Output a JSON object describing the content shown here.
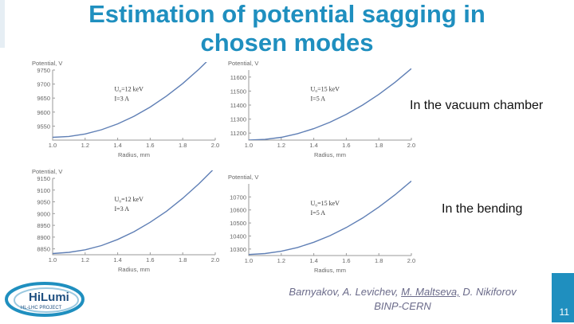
{
  "slide": {
    "title_line1": "Estimation of potential sagging in",
    "title_line2": "chosen modes",
    "annotation_top": "In the vacuum chamber",
    "annotation_bottom": "In the bending",
    "authors_part1": "Barnyakov, A. Levichev, ",
    "authors_underlined": "M. Maltseva,",
    "authors_part2": " D. Nikiforov",
    "affiliation": "BINP-CERN",
    "page_number": "11",
    "logo_text_main": "HiLumi",
    "logo_text_sub": "HL-LHC PROJECT"
  },
  "colors": {
    "title": "#1f8fbf",
    "curve": "#5f7fb5",
    "accent": "#1f8fbf"
  },
  "chart_data": [
    {
      "type": "line",
      "title": "",
      "xlabel": "Radius, mm",
      "ylabel": "Potential, V",
      "xlim": [
        1.0,
        2.0
      ],
      "ylim": [
        9500,
        9750
      ],
      "xticks": [
        1.0,
        1.2,
        1.4,
        1.6,
        1.8,
        2.0
      ],
      "xtick_labels": [
        "1.0",
        "1.2",
        "1.4",
        "1.6",
        "1.8",
        "2.0"
      ],
      "yticks": [
        9550,
        9600,
        9650,
        9700,
        9750
      ],
      "ytick_labels": [
        "9550",
        "9600",
        "9650",
        "9700",
        "9750"
      ],
      "legend_text": [
        "U₀=12 keV",
        "I=3 A"
      ],
      "series": [
        {
          "x": [
            1.0,
            1.1,
            1.2,
            1.3,
            1.4,
            1.5,
            1.6,
            1.7,
            1.8,
            1.9,
            2.0
          ],
          "values": [
            9510,
            9513,
            9522,
            9537,
            9558,
            9585,
            9618,
            9657,
            9702,
            9753,
            9810
          ]
        }
      ]
    },
    {
      "type": "line",
      "title": "",
      "xlabel": "Radius, mm",
      "ylabel": "Potential, V",
      "xlim": [
        1.0,
        2.0
      ],
      "ylim": [
        11150,
        11650
      ],
      "xticks": [
        1.0,
        1.2,
        1.4,
        1.6,
        1.8,
        2.0
      ],
      "xtick_labels": [
        "1.0",
        "1.2",
        "1.4",
        "1.6",
        "1.8",
        "2.0"
      ],
      "yticks": [
        11200,
        11300,
        11400,
        11500,
        11600
      ],
      "ytick_labels": [
        "11200",
        "11300",
        "11400",
        "11500",
        "11600"
      ],
      "legend_text": [
        "U₀=15 keV",
        "I=5 A"
      ],
      "series": [
        {
          "x": [
            1.0,
            1.1,
            1.2,
            1.3,
            1.4,
            1.5,
            1.6,
            1.7,
            1.8,
            1.9,
            2.0
          ],
          "values": [
            11150,
            11155,
            11170,
            11196,
            11232,
            11278,
            11334,
            11400,
            11476,
            11563,
            11660
          ]
        }
      ]
    },
    {
      "type": "line",
      "title": "",
      "xlabel": "Radius, mm",
      "ylabel": "Potential, V",
      "xlim": [
        1.0,
        2.0
      ],
      "ylim": [
        8825,
        9150
      ],
      "xticks": [
        1.0,
        1.2,
        1.4,
        1.6,
        1.8,
        2.0
      ],
      "xtick_labels": [
        "1.0",
        "1.2",
        "1.4",
        "1.6",
        "1.8",
        "2.0"
      ],
      "yticks": [
        8850,
        8900,
        8950,
        9000,
        9050,
        9100,
        9150
      ],
      "ytick_labels": [
        "8850",
        "8900",
        "8950",
        "9000",
        "9050",
        "9100",
        "9150"
      ],
      "legend_text": [
        "U₀=12 keV",
        "I=3 A"
      ],
      "series": [
        {
          "x": [
            1.0,
            1.1,
            1.2,
            1.3,
            1.4,
            1.5,
            1.6,
            1.7,
            1.8,
            1.9,
            2.0
          ],
          "values": [
            8830,
            8835,
            8846,
            8864,
            8890,
            8923,
            8963,
            9010,
            9065,
            9127,
            9196
          ]
        }
      ]
    },
    {
      "type": "line",
      "title": "",
      "xlabel": "Radius, mm",
      "ylabel": "Potential, V",
      "xlim": [
        1.0,
        2.0
      ],
      "ylim": [
        10250,
        10800
      ],
      "xticks": [
        1.0,
        1.2,
        1.4,
        1.6,
        1.8,
        2.0
      ],
      "xtick_labels": [
        "1.0",
        "1.2",
        "1.4",
        "1.6",
        "1.8",
        "2.0"
      ],
      "yticks": [
        10300,
        10400,
        10500,
        10600,
        10700
      ],
      "ytick_labels": [
        "10300",
        "10400",
        "10500",
        "10600",
        "10700"
      ],
      "legend_text": [
        "U₀=15 keV",
        "I=5 A"
      ],
      "series": [
        {
          "x": [
            1.0,
            1.1,
            1.2,
            1.3,
            1.4,
            1.5,
            1.6,
            1.7,
            1.8,
            1.9,
            2.0
          ],
          "values": [
            10258,
            10265,
            10283,
            10312,
            10352,
            10403,
            10465,
            10538,
            10622,
            10717,
            10822
          ]
        }
      ]
    }
  ]
}
